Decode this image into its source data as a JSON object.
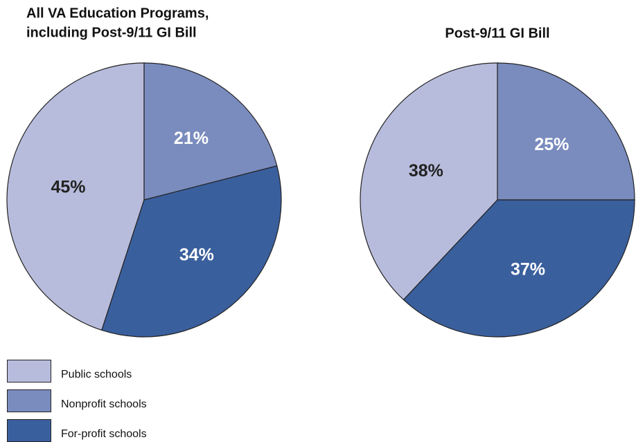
{
  "chart_data": [
    {
      "type": "pie",
      "title": [
        "All VA Education Programs,",
        "including Post-9/11 GI Bill"
      ],
      "categories": [
        "Public schools",
        "Nonprofit schools",
        "For-profit schools"
      ],
      "values": [
        45,
        21,
        34
      ],
      "value_labels": [
        "45%",
        "21%",
        "34%"
      ],
      "colors": [
        "#b8bcdc",
        "#7a8cbe",
        "#3a5f9d"
      ],
      "label_colors": [
        "#222222",
        "#ffffff",
        "#ffffff"
      ]
    },
    {
      "type": "pie",
      "title": [
        "Post-9/11 GI Bill"
      ],
      "categories": [
        "Public schools",
        "Nonprofit schools",
        "For-profit schools"
      ],
      "values": [
        38,
        25,
        37
      ],
      "value_labels": [
        "38%",
        "25%",
        "37%"
      ],
      "colors": [
        "#b8bcdc",
        "#7a8cbe",
        "#3a5f9d"
      ],
      "label_colors": [
        "#222222",
        "#ffffff",
        "#ffffff"
      ]
    }
  ]
}
